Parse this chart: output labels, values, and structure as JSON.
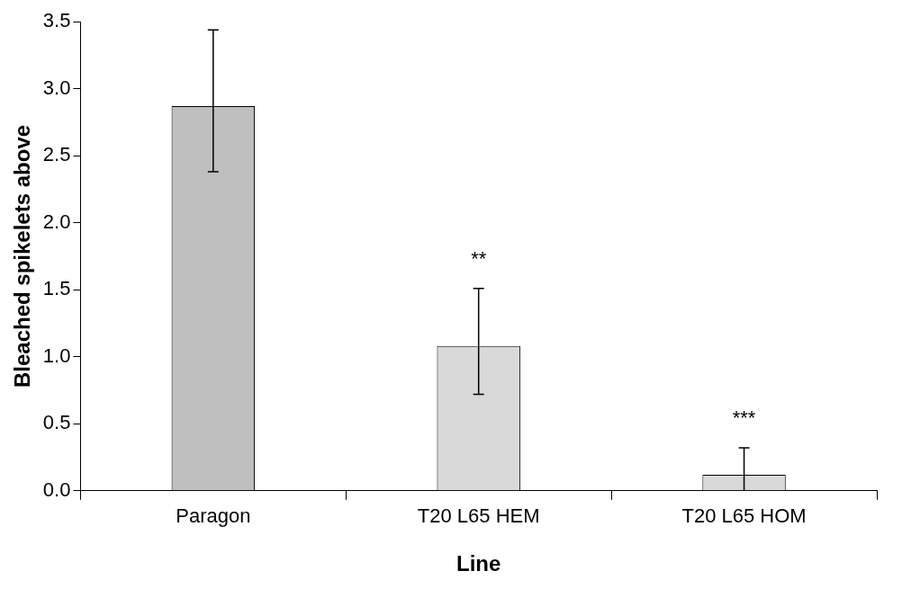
{
  "chart_data": {
    "type": "bar",
    "xlabel": "Line",
    "ylabel": "Bleached spikelets above",
    "categories": [
      "Paragon",
      "T20 L65 HEM",
      "T20 L65 HOM"
    ],
    "values": [
      2.87,
      1.08,
      0.12
    ],
    "colors": [
      "#bfbfbf",
      "#d9d9d9",
      "#d9d9d9"
    ],
    "errors": [
      [
        2.38,
        3.44
      ],
      [
        0.72,
        1.51
      ],
      [
        0,
        0.32
      ]
    ],
    "ylim": [
      0,
      3.5
    ],
    "yticks": [
      {
        "value": 0,
        "label": "0.0"
      },
      0.5,
      {
        "value": 1,
        "label": "1.0"
      },
      1.5,
      {
        "value": 2,
        "label": "2.0"
      },
      2.5,
      {
        "value": 3,
        "label": "3.0"
      },
      3.5
    ],
    "annotations": [
      "**",
      "***"
    ],
    "grid": false,
    "legend": false
  }
}
